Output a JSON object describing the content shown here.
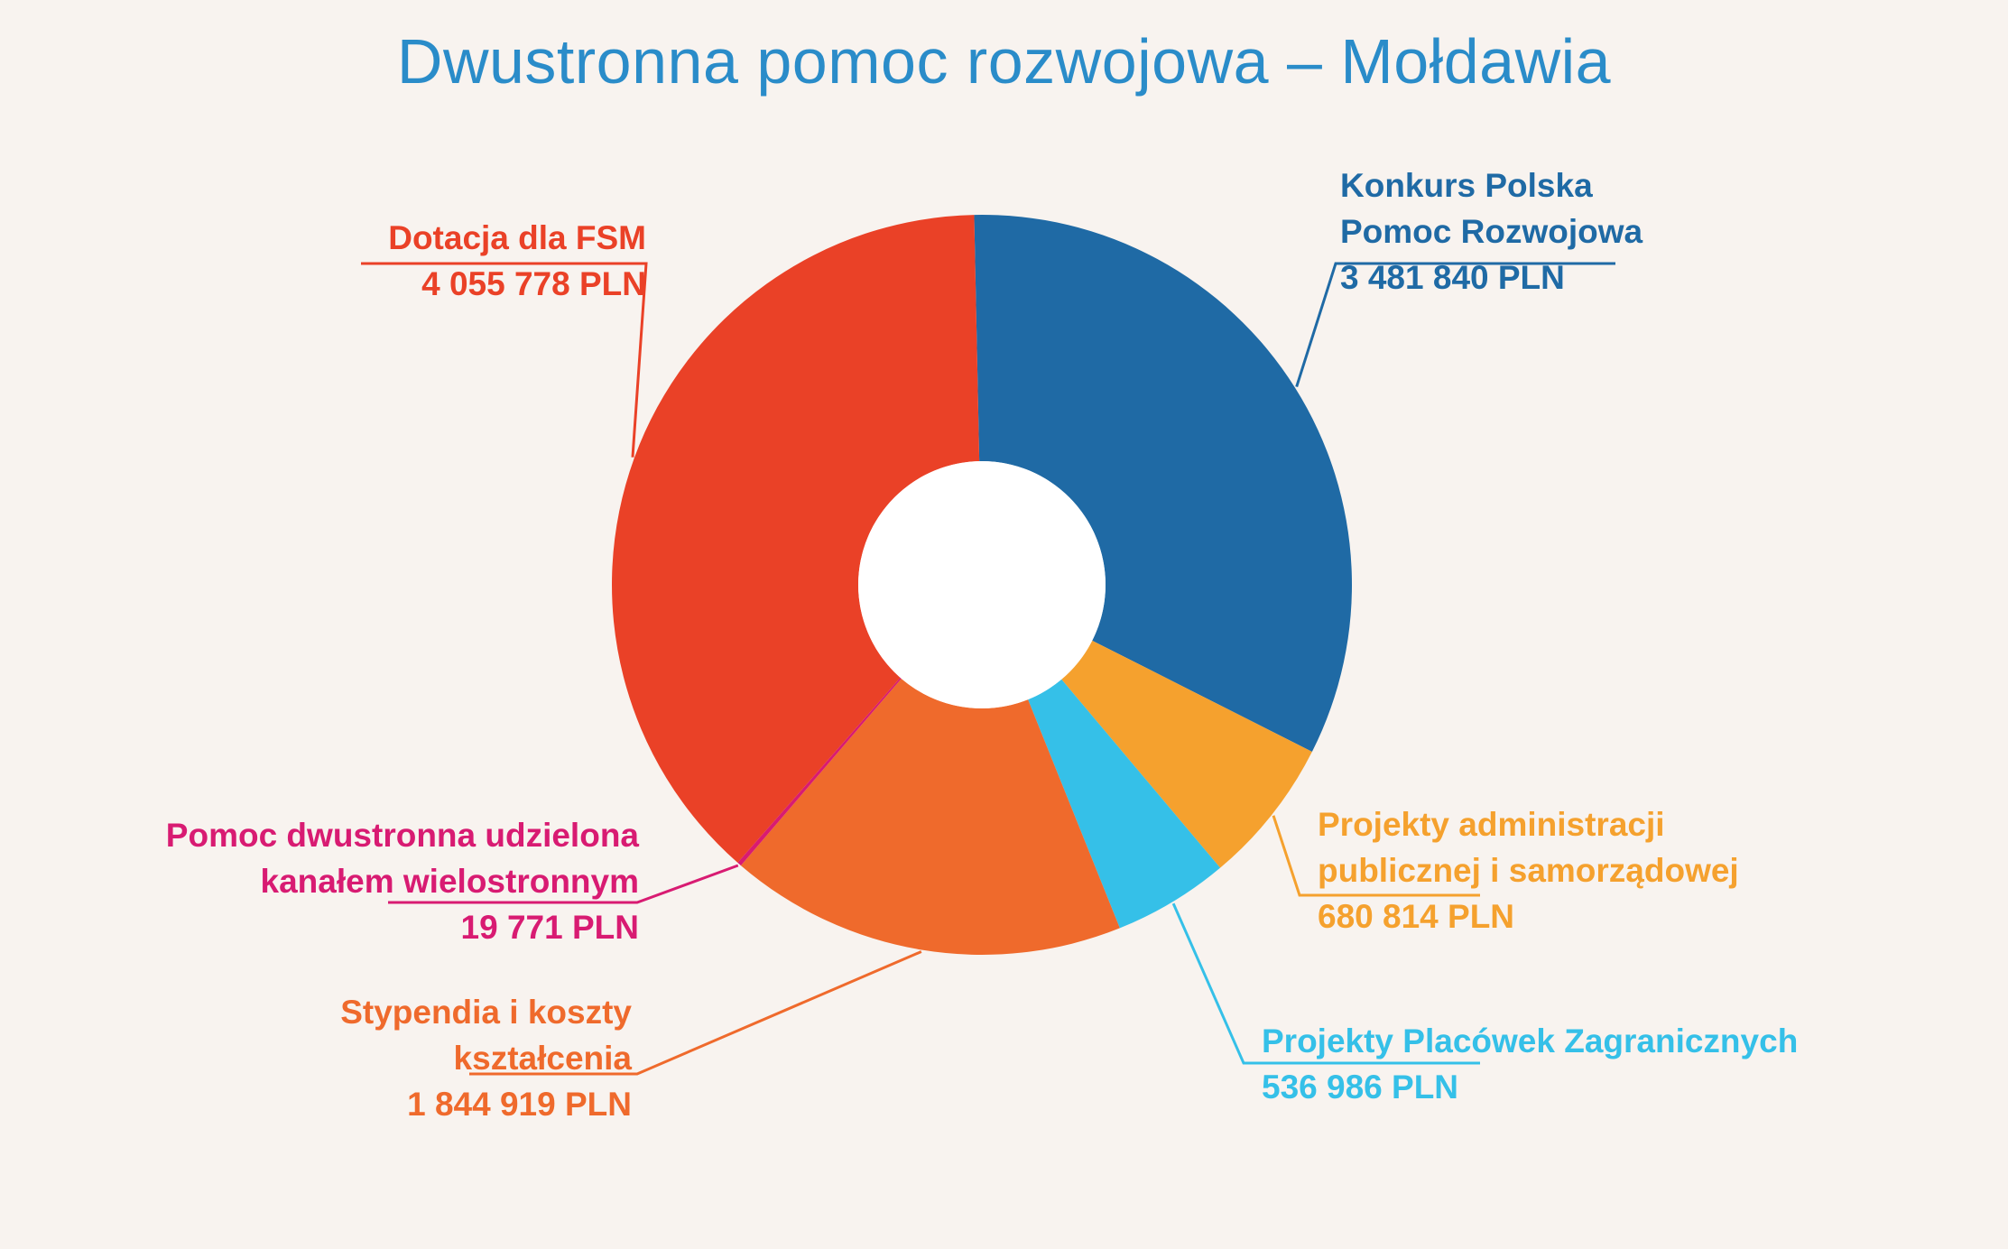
{
  "chart_data": {
    "type": "pie",
    "variant": "donut",
    "title": "Dwustronna pomoc rozwojowa – Mołdawia",
    "unit": "PLN",
    "slices": [
      {
        "label_lines": [
          "Konkurs Polska",
          "Pomoc Rozwojowa"
        ],
        "value": 3481840,
        "value_text": "3 481 840 PLN",
        "color": "#1f6aa5"
      },
      {
        "label_lines": [
          "Projekty administracji",
          "publicznej i samorządowej"
        ],
        "value": 680814,
        "value_text": "680 814 PLN",
        "color": "#f5a12e"
      },
      {
        "label_lines": [
          "Projekty Placówek Zagranicznych"
        ],
        "value": 536986,
        "value_text": "536 986 PLN",
        "color": "#35c0e8"
      },
      {
        "label_lines": [
          "Stypendia i koszty",
          "kształcenia"
        ],
        "value": 1844919,
        "value_text": "1 844 919 PLN",
        "color": "#ef6a2c"
      },
      {
        "label_lines": [
          "Pomoc dwustronna udzielona",
          "kanałem wielostronnym"
        ],
        "value": 19771,
        "value_text": "19 771 PLN",
        "color": "#d81b72"
      },
      {
        "label_lines": [
          "Dotacja dla FSM"
        ],
        "value": 4055778,
        "value_text": "4 055 778 PLN",
        "color": "#ea4127"
      }
    ]
  }
}
